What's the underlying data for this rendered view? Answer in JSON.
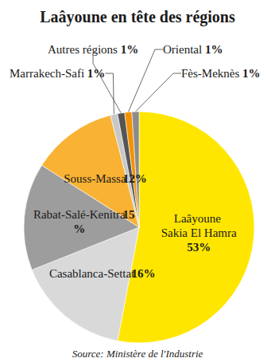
{
  "chart_data": {
    "type": "pie",
    "title": "Laâyoune en tête des régions",
    "categories": [
      "Laâyoune Sakia El Hamra",
      "Casablanca-Settat",
      "Rabat-Salé-Kenitra",
      "Souss-Massa",
      "Marrakech-Safi",
      "Autres régions",
      "Oriental",
      "Fès-Meknès"
    ],
    "values": [
      53,
      16,
      15,
      12,
      1,
      1,
      1,
      1
    ],
    "value_labels": [
      "53%",
      "16%",
      "15%",
      "12%",
      "1%",
      "1%",
      "1%",
      "1%"
    ],
    "colors": [
      "#ffe600",
      "#d9d9d9",
      "#9d9d9d",
      "#f9b233",
      "#c8c8c8",
      "#555555",
      "#f39200",
      "#8c8c8c"
    ],
    "data_labels": true,
    "source": "Source: Ministère de l'Industrie"
  }
}
